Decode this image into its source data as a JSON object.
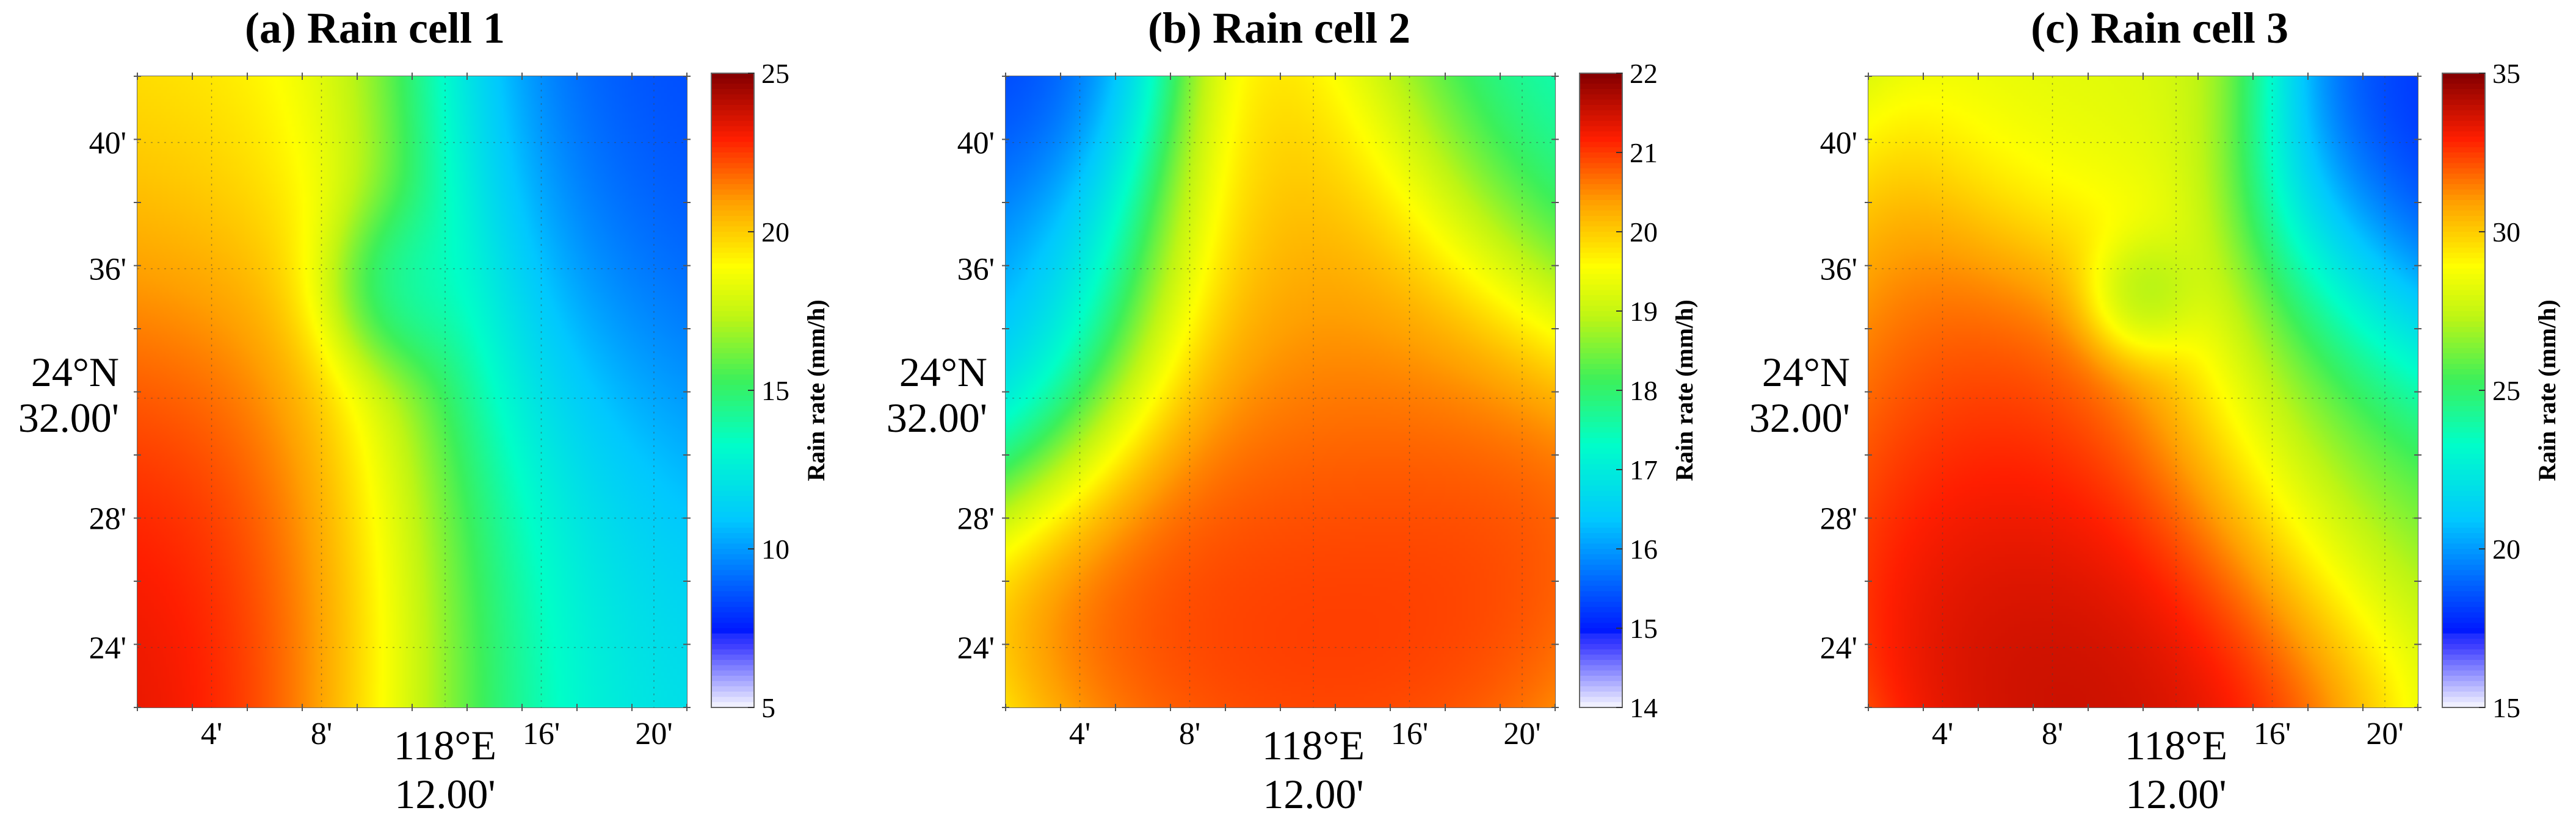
{
  "chart_data": [
    {
      "type": "heatmap",
      "title": "(a) Rain cell 1",
      "colorbar": {
        "label": "Rain rate (mm/h)",
        "range": [
          5,
          25
        ],
        "ticks": [
          "5",
          "10",
          "15",
          "20",
          "25"
        ]
      },
      "x_ticks": [
        "4'",
        "8'",
        "118°E\n12.00'",
        "16'",
        "20'"
      ],
      "y_ticks": [
        "40'",
        "36'",
        "24°N\n32.00'",
        "28'",
        "24'"
      ],
      "blobs": [
        {
          "x": 0.14,
          "y": 0.15,
          "value": 25,
          "spread": 0.32
        },
        {
          "x": 0.0,
          "y": 0.55,
          "value": 22,
          "spread": 0.35
        },
        {
          "x": 0.05,
          "y": 0.95,
          "value": 19,
          "spread": 0.25
        },
        {
          "x": 0.47,
          "y": 0.66,
          "value": 12,
          "spread": 0.08
        },
        {
          "x": 1.0,
          "y": 0.75,
          "value": 8,
          "spread": 0.35
        },
        {
          "x": 0.85,
          "y": 0.15,
          "value": 12,
          "spread": 0.35
        }
      ],
      "base": 13
    },
    {
      "type": "heatmap",
      "title": "(b) Rain cell 2",
      "colorbar": {
        "label": "Rain rate (mm/h)",
        "range": [
          14,
          22
        ],
        "ticks": [
          "14",
          "15",
          "16",
          "17",
          "18",
          "19",
          "20",
          "21",
          "22"
        ]
      },
      "x_ticks": [
        "4'",
        "8'",
        "118°E\n12.00'",
        "16'",
        "20'"
      ],
      "y_ticks": [
        "40'",
        "36'",
        "24°N\n32.00'",
        "28'",
        "24'"
      ],
      "blobs": [
        {
          "x": 0.58,
          "y": 0.38,
          "value": 21.3,
          "spread": 0.3
        },
        {
          "x": 0.55,
          "y": 0.7,
          "value": 20.0,
          "spread": 0.25
        },
        {
          "x": 0.05,
          "y": 0.7,
          "value": 15.5,
          "spread": 0.18
        },
        {
          "x": 0.05,
          "y": 0.97,
          "value": 15.0,
          "spread": 0.14
        },
        {
          "x": 1.0,
          "y": 0.95,
          "value": 17.2,
          "spread": 0.2
        }
      ],
      "base": 17.5
    },
    {
      "type": "heatmap",
      "title": "(c) Rain cell 3",
      "colorbar": {
        "label": "Rain rate (mm/h)",
        "range": [
          15,
          35
        ],
        "ticks": [
          "15",
          "20",
          "25",
          "30",
          "35"
        ]
      },
      "x_ticks": [
        "4'",
        "8'",
        "118°E\n12.00'",
        "16'",
        "20'"
      ],
      "y_ticks": [
        "40'",
        "36'",
        "24°N\n32.00'",
        "28'",
        "24'"
      ],
      "blobs": [
        {
          "x": 0.42,
          "y": 0.2,
          "value": 35,
          "spread": 0.22
        },
        {
          "x": 0.45,
          "y": 0.45,
          "value": 32,
          "spread": 0.26
        },
        {
          "x": 0.45,
          "y": 0.9,
          "value": 28,
          "spread": 0.15
        },
        {
          "x": 0.5,
          "y": 0.65,
          "value": 24,
          "spread": 0.06
        },
        {
          "x": 0.98,
          "y": 0.8,
          "value": 17,
          "spread": 0.18
        },
        {
          "x": 0.8,
          "y": 0.5,
          "value": 25,
          "spread": 0.2
        }
      ],
      "base": 26
    }
  ]
}
